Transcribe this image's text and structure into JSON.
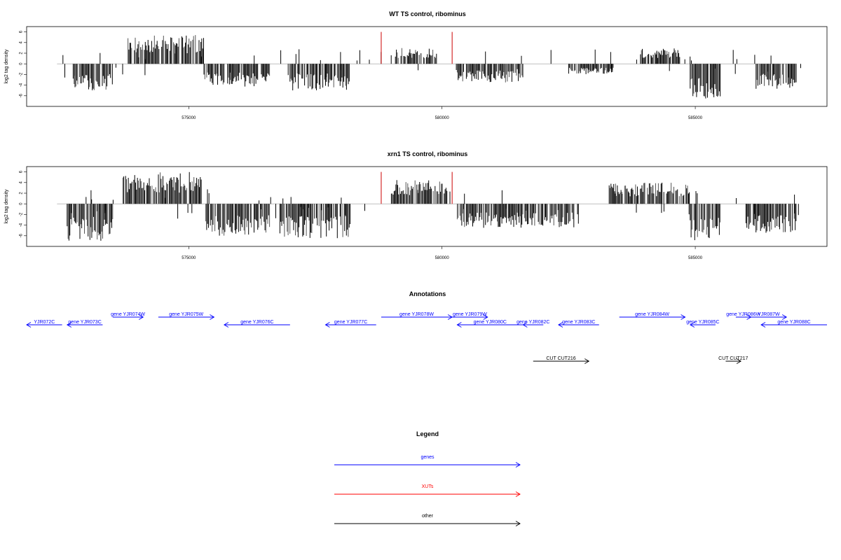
{
  "chart_data": [
    {
      "type": "bar",
      "title": "WT TS control, ribominus",
      "ylabel": "log2 tag density",
      "xlabel": "",
      "ylim": [
        -8,
        7
      ],
      "xlim": [
        571800,
        587600
      ],
      "yticks": [
        "6",
        "4",
        "2",
        "0",
        "-2",
        "-4",
        "-6"
      ],
      "xticks": [
        575000,
        580000,
        585000
      ],
      "xtick_labels": [
        "575000",
        "580000",
        "585000"
      ],
      "segments": [
        {
          "start": 572700,
          "end": 573500,
          "sign": -1,
          "max": 5.0,
          "seed": 11
        },
        {
          "start": 573800,
          "end": 575300,
          "sign": 1,
          "max": 5.5,
          "seed": 12
        },
        {
          "start": 575300,
          "end": 576600,
          "sign": -1,
          "max": 4.5,
          "seed": 13
        },
        {
          "start": 577000,
          "end": 578200,
          "sign": -1,
          "max": 5.0,
          "seed": 14
        },
        {
          "start": 579100,
          "end": 579900,
          "sign": 1,
          "max": 3.0,
          "seed": 15
        },
        {
          "start": 580300,
          "end": 581600,
          "sign": -1,
          "max": 3.5,
          "seed": 16
        },
        {
          "start": 582500,
          "end": 583400,
          "sign": -1,
          "max": 2.0,
          "seed": 17
        },
        {
          "start": 583900,
          "end": 584700,
          "sign": 1,
          "max": 3.0,
          "seed": 18
        },
        {
          "start": 584900,
          "end": 585500,
          "sign": -1,
          "max": 6.5,
          "seed": 19
        },
        {
          "start": 586200,
          "end": 587000,
          "sign": -1,
          "max": 5.0,
          "seed": 20
        }
      ],
      "red_bars": [
        {
          "x": 578800,
          "y": 6
        },
        {
          "x": 580200,
          "y": 6
        }
      ]
    },
    {
      "type": "bar",
      "title": "xrn1 TS control, ribominus",
      "ylabel": "log2 tag density",
      "xlabel": "",
      "ylim": [
        -8,
        7
      ],
      "xlim": [
        571800,
        587600
      ],
      "yticks": [
        "6",
        "4",
        "2",
        "0",
        "-2",
        "-4",
        "-6"
      ],
      "xticks": [
        575000,
        580000,
        585000
      ],
      "xtick_labels": [
        "575000",
        "580000",
        "585000"
      ],
      "segments": [
        {
          "start": 572600,
          "end": 573500,
          "sign": -1,
          "max": 7.0,
          "seed": 31
        },
        {
          "start": 573700,
          "end": 575300,
          "sign": 1,
          "max": 6.0,
          "seed": 32
        },
        {
          "start": 575300,
          "end": 576600,
          "sign": -1,
          "max": 6.0,
          "seed": 33
        },
        {
          "start": 576800,
          "end": 578200,
          "sign": -1,
          "max": 6.5,
          "seed": 34
        },
        {
          "start": 579000,
          "end": 580100,
          "sign": 1,
          "max": 4.5,
          "seed": 35
        },
        {
          "start": 580300,
          "end": 582700,
          "sign": -1,
          "max": 4.5,
          "seed": 36
        },
        {
          "start": 583300,
          "end": 584900,
          "sign": 1,
          "max": 4.0,
          "seed": 37
        },
        {
          "start": 584900,
          "end": 585500,
          "sign": -1,
          "max": 7.0,
          "seed": 38
        },
        {
          "start": 586000,
          "end": 587000,
          "sign": -1,
          "max": 5.5,
          "seed": 39
        }
      ],
      "red_bars": [
        {
          "x": 578800,
          "y": 6
        },
        {
          "x": 580200,
          "y": 6
        }
      ]
    }
  ],
  "annotations": {
    "title": "Annotations",
    "genes": [
      {
        "label": "YJR072C",
        "start": 571800,
        "end": 572500,
        "strand": "-"
      },
      {
        "label": "gene YJR073C",
        "start": 572600,
        "end": 573300,
        "strand": "-"
      },
      {
        "label": "gene YJR074W",
        "start": 573500,
        "end": 574100,
        "strand": "+"
      },
      {
        "label": "gene YJR075W",
        "start": 574400,
        "end": 575500,
        "strand": "+"
      },
      {
        "label": "gene YJR076C",
        "start": 575700,
        "end": 577000,
        "strand": "-"
      },
      {
        "label": "gene YJR077C",
        "start": 577700,
        "end": 578700,
        "strand": "-"
      },
      {
        "label": "gene YJR078W",
        "start": 578800,
        "end": 580200,
        "strand": "+"
      },
      {
        "label": "gene YJR079W",
        "start": 580200,
        "end": 580900,
        "strand": "+"
      },
      {
        "label": "gene YJR080C",
        "start": 580300,
        "end": 581600,
        "strand": "-"
      },
      {
        "label": "gene YJR082C",
        "start": 581600,
        "end": 582000,
        "strand": "-"
      },
      {
        "label": "gene YJR083C",
        "start": 582300,
        "end": 583100,
        "strand": "-"
      },
      {
        "label": "gene YJR084W",
        "start": 583500,
        "end": 584800,
        "strand": "+"
      },
      {
        "label": "gene YJR085C",
        "start": 584900,
        "end": 585400,
        "strand": "-"
      },
      {
        "label": "gene YJR086W",
        "start": 585800,
        "end": 586100,
        "strand": "+"
      },
      {
        "label": "YJR087W",
        "start": 586100,
        "end": 586800,
        "strand": "+"
      },
      {
        "label": "gene YJR088C",
        "start": 586300,
        "end": 587600,
        "strand": "-"
      }
    ],
    "cuts": [
      {
        "label": "CUT CUT216",
        "start": 581800,
        "end": 582900,
        "strand": "+"
      },
      {
        "label": "CUT CUT217",
        "start": 585600,
        "end": 585900,
        "strand": "+"
      }
    ]
  },
  "legend": {
    "title": "Legend",
    "items": [
      {
        "label": "genes",
        "color": "#0000ff"
      },
      {
        "label": "XUTs",
        "color": "#ff0000"
      },
      {
        "label": "other",
        "color": "#000000"
      }
    ]
  },
  "colors": {
    "gene": "#0000ff",
    "xut": "#ff0000",
    "other": "#000000",
    "bar": "#000000",
    "bar_light": "#555555",
    "highlight": "#cc0000",
    "zero_line": "#999999"
  }
}
